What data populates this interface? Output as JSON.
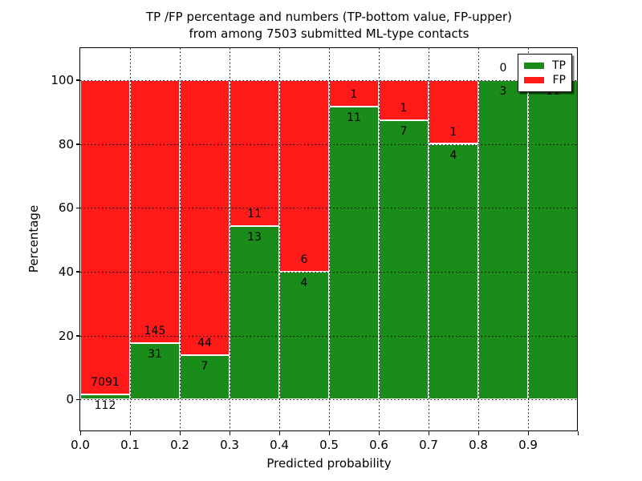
{
  "title": {
    "line1": "TP /FP percentage and numbers (TP-bottom value, FP-upper)",
    "line2": "from among 7503 submitted ML-type contacts"
  },
  "axes": {
    "x_label": "Predicted probability",
    "y_label": "Percentage",
    "x_ticklabels": [
      "0.0",
      "0.1",
      "0.2",
      "0.3",
      "0.4",
      "0.5",
      "0.6",
      "0.7",
      "0.8",
      "0.9"
    ],
    "y_ticklabels": [
      "0",
      "20",
      "40",
      "60",
      "80",
      "100"
    ],
    "y_tick_values": [
      0,
      20,
      40,
      60,
      80,
      100
    ]
  },
  "legend": {
    "position": "upper right",
    "items": [
      {
        "label": "TP",
        "color": "#198c19"
      },
      {
        "label": "FP",
        "color": "#ff1a1a"
      }
    ]
  },
  "chart_data": {
    "type": "bar",
    "variant": "stacked-100-percent",
    "title": "TP /FP percentage and numbers (TP-bottom value, FP-upper) from among 7503 submitted ML-type contacts",
    "xlabel": "Predicted probability",
    "ylabel": "Percentage",
    "total_contacts": 7503,
    "ylim": [
      -10,
      110
    ],
    "xlim": [
      0.0,
      1.0
    ],
    "bin_width": 0.1,
    "grid": true,
    "grid_style": "dotted",
    "bar_edge_color": "#ffffff",
    "colors": {
      "tp": "#198c19",
      "fp": "#ff1a1a"
    },
    "categories": [
      "0.0-0.1",
      "0.1-0.2",
      "0.2-0.3",
      "0.3-0.4",
      "0.4-0.5",
      "0.5-0.6",
      "0.6-0.7",
      "0.7-0.8",
      "0.8-0.9",
      "0.9-1.0"
    ],
    "series": [
      {
        "name": "TP",
        "counts": [
          112,
          31,
          7,
          13,
          4,
          11,
          7,
          4,
          3,
          11
        ]
      },
      {
        "name": "FP",
        "counts": [
          7091,
          145,
          44,
          11,
          6,
          1,
          1,
          1,
          0,
          0
        ]
      }
    ],
    "bars": [
      {
        "bin_start": 0.0,
        "tp": 112,
        "fp": 7091,
        "fp_label_visible": true
      },
      {
        "bin_start": 0.1,
        "tp": 31,
        "fp": 145,
        "fp_label_visible": true
      },
      {
        "bin_start": 0.2,
        "tp": 7,
        "fp": 44,
        "fp_label_visible": true
      },
      {
        "bin_start": 0.3,
        "tp": 13,
        "fp": 11,
        "fp_label_visible": true
      },
      {
        "bin_start": 0.4,
        "tp": 4,
        "fp": 6,
        "fp_label_visible": true
      },
      {
        "bin_start": 0.5,
        "tp": 11,
        "fp": 1,
        "fp_label_visible": true
      },
      {
        "bin_start": 0.6,
        "tp": 7,
        "fp": 1,
        "fp_label_visible": true
      },
      {
        "bin_start": 0.7,
        "tp": 4,
        "fp": 1,
        "fp_label_visible": true
      },
      {
        "bin_start": 0.8,
        "tp": 3,
        "fp": 0,
        "fp_label_visible": true
      },
      {
        "bin_start": 0.9,
        "tp": 11,
        "fp": 0,
        "fp_label_visible": false
      }
    ]
  }
}
